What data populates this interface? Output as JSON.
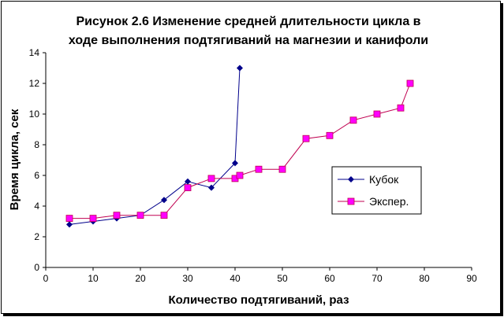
{
  "chart_data": {
    "type": "line",
    "title_line1": "Рисунок 2.6  Изменение средней длительности цикла в",
    "title_line2": "ходе выполнения подтягиваний на магнезии и канифоли",
    "xlabel": "Количество подтягиваний, раз",
    "ylabel": "Время цикла, сек",
    "xlim": [
      0,
      90
    ],
    "ylim": [
      0,
      14
    ],
    "x_ticks": [
      0,
      10,
      20,
      30,
      40,
      50,
      60,
      70,
      80,
      90
    ],
    "y_ticks": [
      0,
      2,
      4,
      6,
      8,
      10,
      12,
      14
    ],
    "grid": false,
    "legend_position": "right",
    "series": [
      {
        "name": "Кубок",
        "color": "#00008b",
        "marker": "diamond",
        "x": [
          5,
          10,
          15,
          20,
          25,
          30,
          35,
          40,
          41
        ],
        "y": [
          2.8,
          3.0,
          3.2,
          3.4,
          4.4,
          5.6,
          5.2,
          6.8,
          13.0
        ]
      },
      {
        "name": "Экспер.",
        "color": "#ff00ff",
        "line_color": "#c00050",
        "marker": "square",
        "x": [
          5,
          10,
          15,
          20,
          25,
          30,
          35,
          40,
          41,
          45,
          50,
          55,
          60,
          65,
          70,
          75,
          77
        ],
        "y": [
          3.2,
          3.2,
          3.4,
          3.4,
          3.4,
          5.2,
          5.8,
          5.8,
          6.0,
          6.4,
          6.4,
          8.4,
          8.6,
          9.6,
          10.0,
          10.4,
          12.0
        ]
      }
    ]
  }
}
